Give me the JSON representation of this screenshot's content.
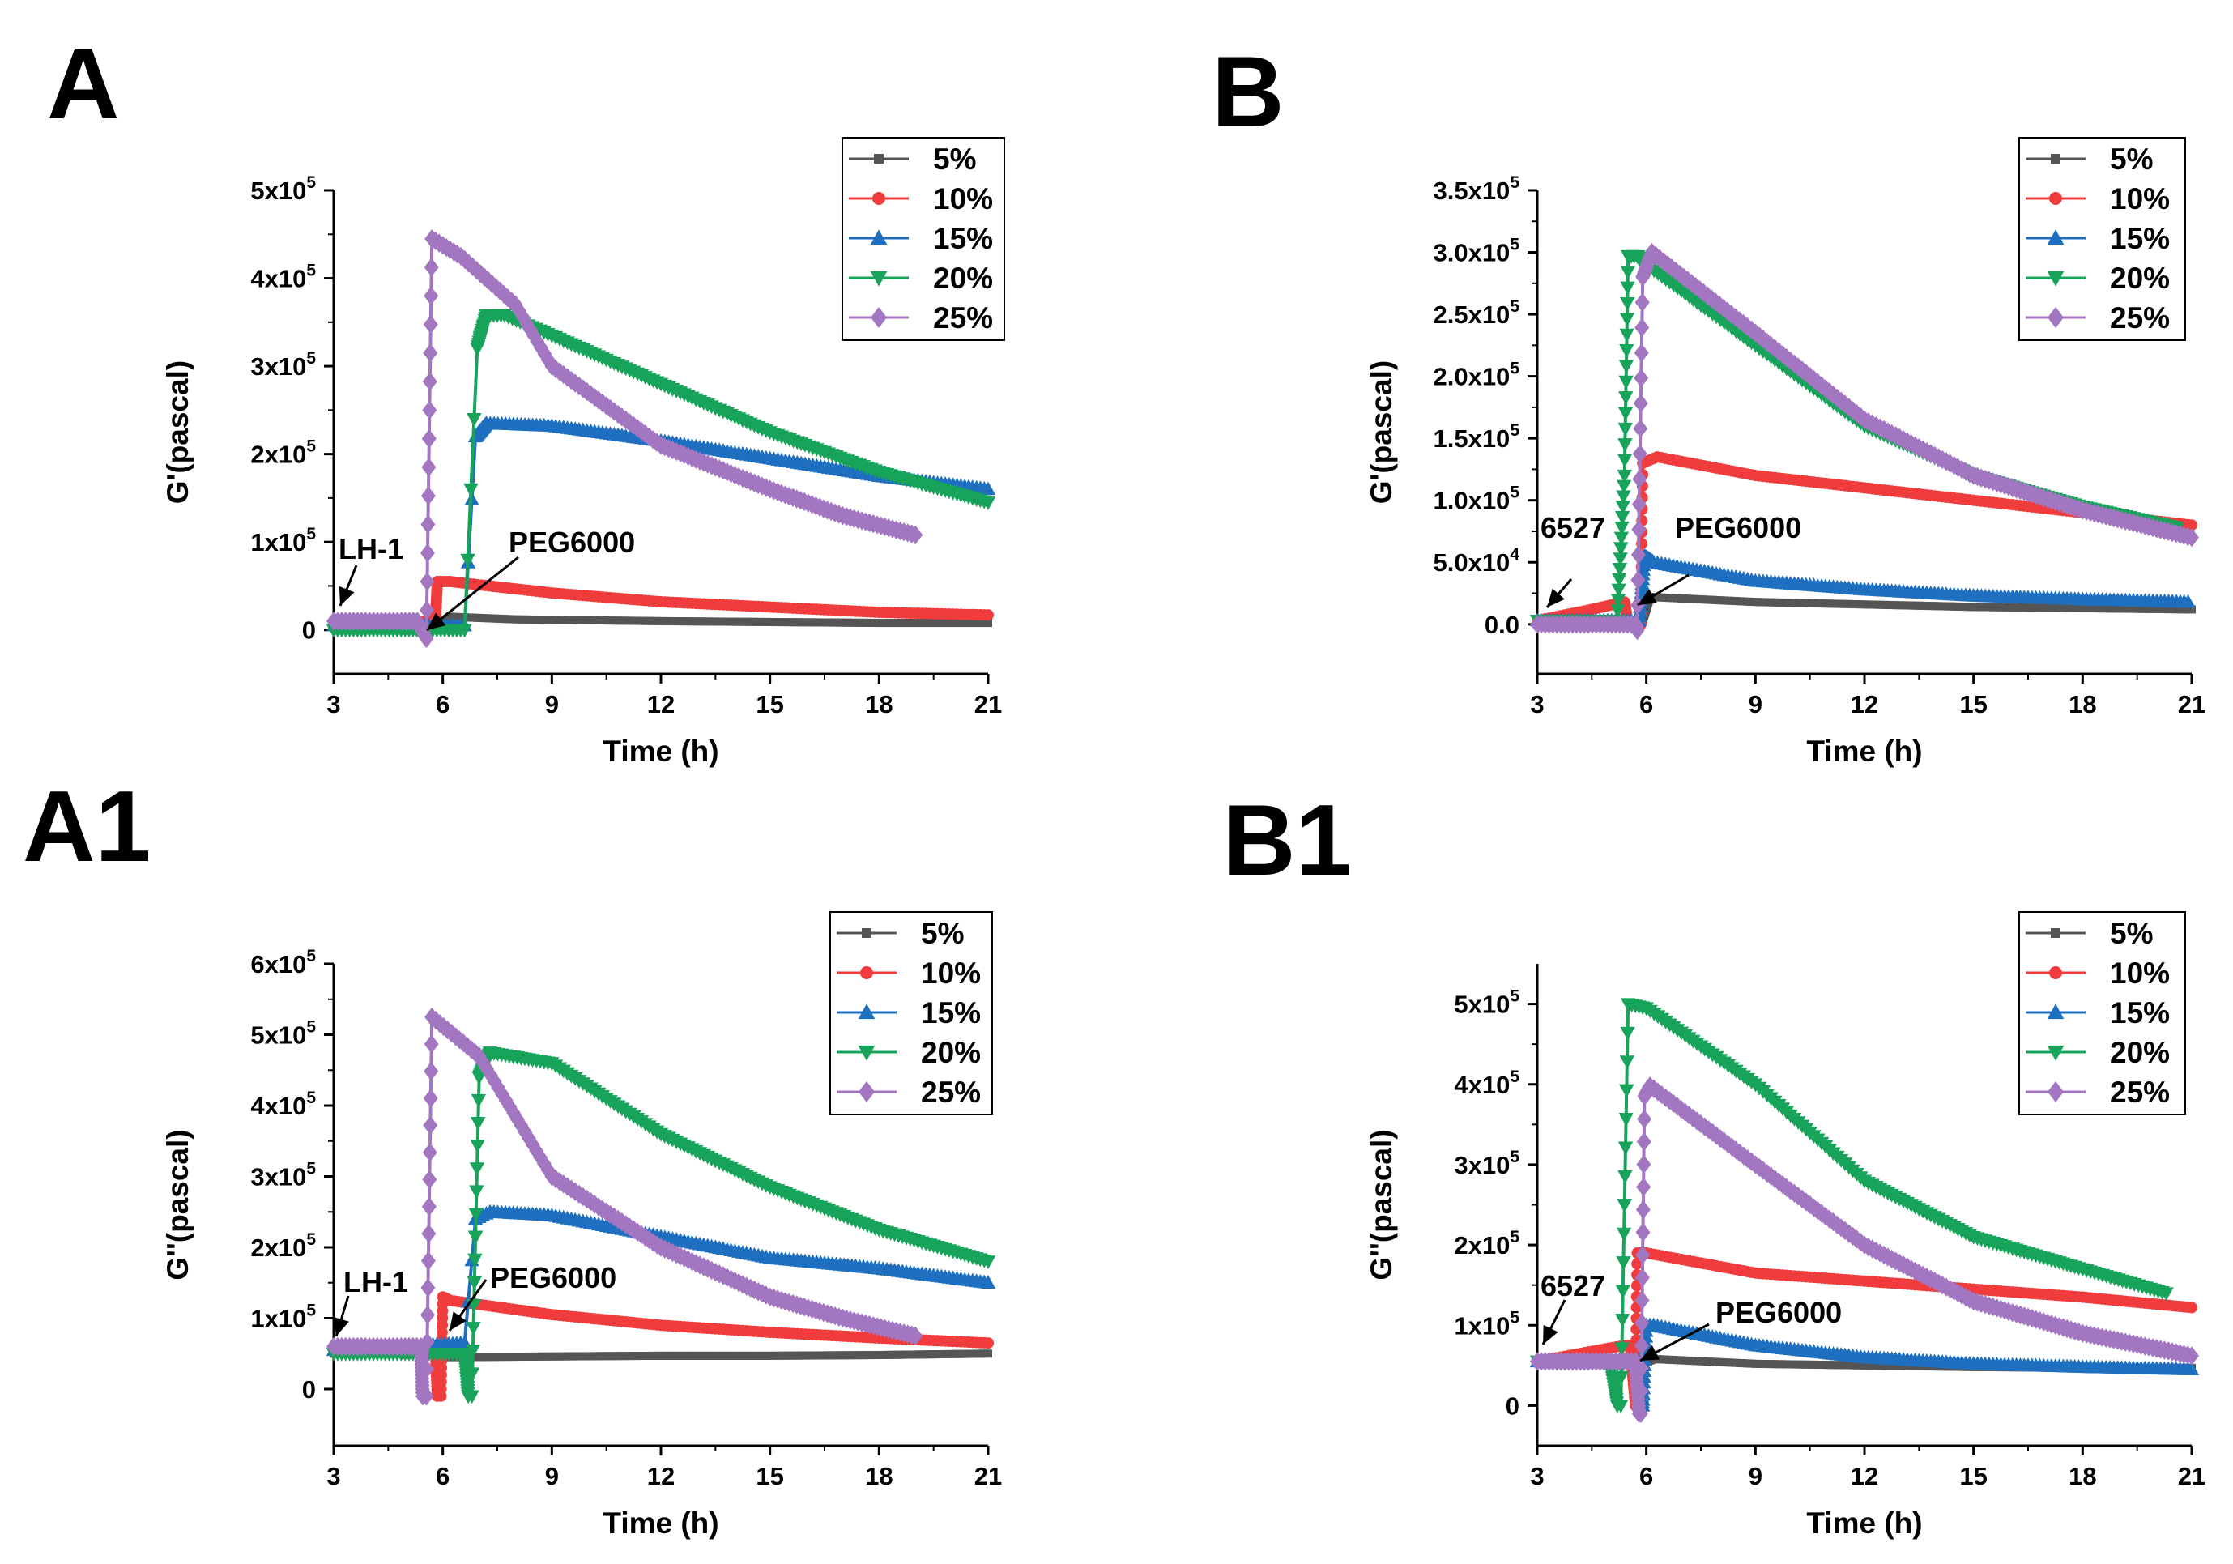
{
  "figure": {
    "colors": {
      "5%": "#555555",
      "10%": "#f03c3c",
      "15%": "#1f6fc1",
      "20%": "#17a35a",
      "25%": "#a276c0"
    }
  },
  "chart_data": [
    {
      "panel": "A",
      "type": "line",
      "title": "",
      "xlabel": "Time (h)",
      "ylabel": "G'(pascal)",
      "xlim": [
        3,
        21
      ],
      "ylim": [
        -50000,
        500000
      ],
      "xticks": [
        3,
        6,
        9,
        12,
        15,
        18,
        21
      ],
      "xtick_labels": [
        "3",
        "6",
        "9",
        "12",
        "15",
        "18",
        "21"
      ],
      "yticks": [
        0,
        100000,
        200000,
        300000,
        400000,
        500000
      ],
      "ytick_labels": [
        {
          "m": "0",
          "e": ""
        },
        {
          "m": "1x10",
          "e": "5"
        },
        {
          "m": "2x10",
          "e": "5"
        },
        {
          "m": "3x10",
          "e": "5"
        },
        {
          "m": "4x10",
          "e": "5"
        },
        {
          "m": "5x10",
          "e": "5"
        }
      ],
      "legend": [
        "5%",
        "10%",
        "15%",
        "20%",
        "25%"
      ],
      "legend_position": "top-right",
      "annotations": [
        {
          "text": "LH-1",
          "x": 3.3,
          "y": 10000
        },
        {
          "text": "PEG6000",
          "x": 5.7,
          "y": 0
        }
      ],
      "series": [
        {
          "name": "5%",
          "x": [
            3,
            6.0,
            6.2,
            8,
            12,
            18,
            21
          ],
          "y": [
            8000,
            8000,
            15000,
            12000,
            10000,
            8000,
            8000
          ]
        },
        {
          "name": "10%",
          "x": [
            3,
            5.8,
            5.85,
            6.2,
            9,
            12,
            15,
            18,
            21
          ],
          "y": [
            10000,
            10000,
            55000,
            55000,
            42000,
            32000,
            26000,
            20000,
            17000
          ]
        },
        {
          "name": "15%",
          "x": [
            3,
            6.6,
            6.9,
            7.2,
            9,
            12,
            15,
            18,
            21
          ],
          "y": [
            5000,
            5000,
            220000,
            235000,
            232000,
            215000,
            195000,
            175000,
            160000
          ]
        },
        {
          "name": "20%",
          "x": [
            3,
            6.6,
            6.95,
            7.2,
            7.7,
            9,
            12,
            15,
            18,
            21
          ],
          "y": [
            0,
            0,
            320000,
            358000,
            358000,
            335000,
            280000,
            225000,
            180000,
            145000
          ]
        },
        {
          "name": "25%",
          "x": [
            3,
            5.3,
            5.55,
            5.7,
            6.5,
            8,
            9,
            12,
            15,
            17,
            19
          ],
          "y": [
            10000,
            10000,
            -10000,
            445000,
            425000,
            370000,
            300000,
            210000,
            160000,
            130000,
            108000
          ]
        }
      ]
    },
    {
      "panel": "B",
      "type": "line",
      "title": "",
      "xlabel": "Time (h)",
      "ylabel": "G'(pascal)",
      "xlim": [
        3,
        21
      ],
      "ylim": [
        -40000,
        350000
      ],
      "xticks": [
        3,
        6,
        9,
        12,
        15,
        18,
        21
      ],
      "xtick_labels": [
        "3",
        "6",
        "9",
        "12",
        "15",
        "18",
        "21"
      ],
      "yticks": [
        0,
        50000,
        100000,
        150000,
        200000,
        250000,
        300000,
        350000
      ],
      "ytick_labels": [
        {
          "m": "0.0",
          "e": ""
        },
        {
          "m": "5.0x10",
          "e": "4"
        },
        {
          "m": "1.0x10",
          "e": "5"
        },
        {
          "m": "1.5x10",
          "e": "5"
        },
        {
          "m": "2.0x10",
          "e": "5"
        },
        {
          "m": "2.5x10",
          "e": "5"
        },
        {
          "m": "3.0x10",
          "e": "5"
        },
        {
          "m": "3.5x10",
          "e": "5"
        }
      ],
      "legend": [
        "5%",
        "10%",
        "15%",
        "20%",
        "25%"
      ],
      "legend_position": "top-right",
      "annotations": [
        {
          "text": "6527",
          "x": 3.2,
          "y": 10000
        },
        {
          "text": "PEG6000",
          "x": 5.85,
          "y": 20000
        }
      ],
      "series": [
        {
          "name": "5%",
          "x": [
            3,
            5.9,
            6.1,
            9,
            12,
            15,
            18,
            21
          ],
          "y": [
            3000,
            3000,
            22000,
            18000,
            16000,
            14000,
            13000,
            12000
          ]
        },
        {
          "name": "10%",
          "x": [
            3,
            4.5,
            5.4,
            5.5,
            5.85,
            5.9,
            6.3,
            9,
            12,
            15,
            18,
            21
          ],
          "y": [
            3000,
            12000,
            18000,
            0,
            0,
            130000,
            135000,
            120000,
            110000,
            100000,
            90000,
            80000
          ]
        },
        {
          "name": "15%",
          "x": [
            3,
            5.8,
            5.95,
            6.2,
            9,
            12,
            15,
            18,
            20.9
          ],
          "y": [
            3000,
            3000,
            55000,
            50000,
            35000,
            28000,
            23000,
            20000,
            18000
          ]
        },
        {
          "name": "20%",
          "x": [
            3,
            5.2,
            5.4,
            5.5,
            5.75,
            6.0,
            9,
            12,
            15,
            18,
            20.6
          ],
          "y": [
            3000,
            3000,
            120000,
            297000,
            297000,
            290000,
            225000,
            160000,
            120000,
            95000,
            78000
          ]
        },
        {
          "name": "25%",
          "x": [
            3,
            5.7,
            5.75,
            5.9,
            6.15,
            9,
            12,
            15,
            18,
            21
          ],
          "y": [
            0,
            0,
            -5000,
            280000,
            300000,
            235000,
            165000,
            120000,
            92000,
            70000
          ]
        }
      ]
    },
    {
      "panel": "A1",
      "type": "line",
      "title": "",
      "xlabel": "Time (h)",
      "ylabel": "G''(pascal)",
      "xlim": [
        3,
        21
      ],
      "ylim": [
        -80000,
        600000
      ],
      "xticks": [
        3,
        6,
        9,
        12,
        15,
        18,
        21
      ],
      "xtick_labels": [
        "3",
        "6",
        "9",
        "12",
        "15",
        "18",
        "21"
      ],
      "yticks": [
        0,
        100000,
        200000,
        300000,
        400000,
        500000,
        600000
      ],
      "ytick_labels": [
        {
          "m": "0",
          "e": ""
        },
        {
          "m": "1x10",
          "e": "5"
        },
        {
          "m": "2x10",
          "e": "5"
        },
        {
          "m": "3x10",
          "e": "5"
        },
        {
          "m": "4x10",
          "e": "5"
        },
        {
          "m": "5x10",
          "e": "5"
        },
        {
          "m": "6x10",
          "e": "5"
        }
      ],
      "legend": [
        "5%",
        "10%",
        "15%",
        "20%",
        "25%"
      ],
      "legend_position": "top-right",
      "annotations": [
        {
          "text": "LH-1",
          "x": 3.1,
          "y": 55000
        },
        {
          "text": "PEG6000",
          "x": 6.1,
          "y": 80000
        }
      ],
      "series": [
        {
          "name": "5%",
          "x": [
            3,
            6.0,
            6.2,
            9,
            12,
            15,
            18,
            21
          ],
          "y": [
            50000,
            50000,
            45000,
            46000,
            47000,
            47000,
            48000,
            50000
          ]
        },
        {
          "name": "10%",
          "x": [
            3,
            5.8,
            5.85,
            5.95,
            6.0,
            6.2,
            9,
            12,
            15,
            18,
            21
          ],
          "y": [
            55000,
            55000,
            -10000,
            -10000,
            130000,
            125000,
            105000,
            90000,
            80000,
            72000,
            65000
          ]
        },
        {
          "name": "15%",
          "x": [
            3,
            6.6,
            6.9,
            7.3,
            9,
            12,
            15,
            18,
            21
          ],
          "y": [
            55000,
            65000,
            240000,
            250000,
            245000,
            215000,
            185000,
            170000,
            150000
          ]
        },
        {
          "name": "20%",
          "x": [
            3,
            6.6,
            6.7,
            6.8,
            7.0,
            7.3,
            9,
            12,
            15,
            18,
            21
          ],
          "y": [
            50000,
            50000,
            -10000,
            -10000,
            440000,
            475000,
            460000,
            360000,
            285000,
            225000,
            180000
          ]
        },
        {
          "name": "25%",
          "x": [
            3,
            5.4,
            5.45,
            5.55,
            5.7,
            7,
            9,
            12,
            15,
            17,
            19
          ],
          "y": [
            60000,
            60000,
            -10000,
            -10000,
            525000,
            470000,
            300000,
            200000,
            130000,
            100000,
            75000
          ]
        }
      ]
    },
    {
      "panel": "B1",
      "type": "line",
      "title": "",
      "xlabel": "Time (h)",
      "ylabel": "G''(pascal)",
      "xlim": [
        3,
        21
      ],
      "ylim": [
        -50000,
        550000
      ],
      "xticks": [
        3,
        6,
        9,
        12,
        15,
        18,
        21
      ],
      "xtick_labels": [
        "3",
        "6",
        "9",
        "12",
        "15",
        "18",
        "21"
      ],
      "yticks": [
        0,
        100000,
        200000,
        300000,
        400000,
        500000
      ],
      "ytick_labels": [
        {
          "m": "0",
          "e": ""
        },
        {
          "m": "1x10",
          "e": "5"
        },
        {
          "m": "2x10",
          "e": "5"
        },
        {
          "m": "3x10",
          "e": "5"
        },
        {
          "m": "4x10",
          "e": "5"
        },
        {
          "m": "5x10",
          "e": "5"
        }
      ],
      "legend": [
        "5%",
        "10%",
        "15%",
        "20%",
        "25%"
      ],
      "legend_position": "top-right",
      "annotations": [
        {
          "text": "6527",
          "x": 3.1,
          "y": 70000
        },
        {
          "text": "PEG6000",
          "x": 5.85,
          "y": 60000
        }
      ],
      "series": [
        {
          "name": "5%",
          "x": [
            3,
            6.0,
            6.2,
            9,
            12,
            15,
            18,
            21
          ],
          "y": [
            55000,
            55000,
            58000,
            52000,
            50000,
            48000,
            47000,
            47000
          ]
        },
        {
          "name": "10%",
          "x": [
            3,
            5.4,
            5.55,
            5.7,
            5.75,
            6.0,
            9,
            12,
            15,
            18,
            21
          ],
          "y": [
            55000,
            75000,
            75000,
            0,
            190000,
            190000,
            165000,
            155000,
            145000,
            135000,
            122000
          ]
        },
        {
          "name": "15%",
          "x": [
            3,
            5.8,
            5.9,
            6.0,
            6.2,
            9,
            12,
            15,
            18,
            21
          ],
          "y": [
            55000,
            55000,
            0,
            100000,
            100000,
            75000,
            60000,
            52000,
            48000,
            45000
          ]
        },
        {
          "name": "20%",
          "x": [
            3,
            5.0,
            5.2,
            5.3,
            5.5,
            6,
            9,
            12,
            15,
            18,
            20.3
          ],
          "y": [
            55000,
            55000,
            0,
            0,
            500000,
            495000,
            400000,
            280000,
            210000,
            170000,
            140000
          ]
        },
        {
          "name": "25%",
          "x": [
            3,
            5.7,
            5.8,
            5.85,
            5.95,
            6.1,
            9,
            12,
            15,
            18,
            21
          ],
          "y": [
            55000,
            55000,
            -10000,
            -10000,
            385000,
            398000,
            300000,
            200000,
            130000,
            90000,
            62000
          ]
        }
      ]
    }
  ]
}
